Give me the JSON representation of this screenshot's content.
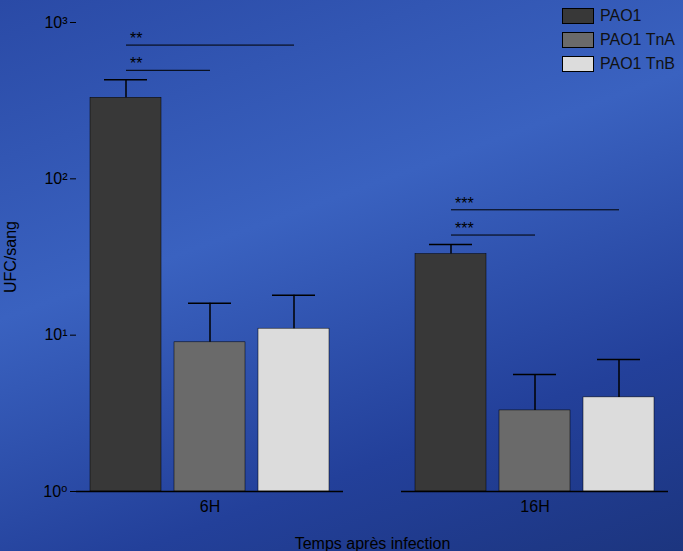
{
  "chart_data": {
    "type": "bar",
    "x_label": "Temps après infection",
    "y_label": "UFC/sang",
    "categories": [
      "6H",
      "16H"
    ],
    "series": [
      {
        "name": "PAO1",
        "color": "#383838",
        "values": [
          330,
          33
        ],
        "errors": [
          100,
          5
        ]
      },
      {
        "name": "PAO1 TnA",
        "color": "#6a6a6a",
        "values": [
          9,
          3.3
        ],
        "errors": [
          7,
          2.3
        ]
      },
      {
        "name": "PAO1 TnB",
        "color": "#dcdcdc",
        "values": [
          11,
          4
        ],
        "errors": [
          7,
          3
        ]
      }
    ],
    "log": "y",
    "ylim": [
      1,
      1000
    ],
    "yticks": [
      {
        "value": 1,
        "label": "10⁰"
      },
      {
        "value": 10,
        "label": "10¹"
      },
      {
        "value": 100,
        "label": "10²"
      },
      {
        "value": 1000,
        "label": "10³"
      }
    ],
    "legend": "top-right",
    "annotations": [
      {
        "category": "6H",
        "from": "PAO1",
        "to": "PAO1 TnB",
        "text": "**"
      },
      {
        "category": "6H",
        "from": "PAO1",
        "to": "PAO1 TnA",
        "text": "**"
      },
      {
        "category": "16H",
        "from": "PAO1",
        "to": "PAO1 TnB",
        "text": "***"
      },
      {
        "category": "16H",
        "from": "PAO1",
        "to": "PAO1 TnA",
        "text": "***"
      }
    ]
  }
}
